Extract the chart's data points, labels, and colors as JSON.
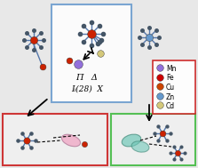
{
  "legend_entries": [
    "Mn",
    "Fe",
    "Cu",
    "Zn",
    "Cd"
  ],
  "legend_colors": [
    "#9370DB",
    "#CC0000",
    "#CC4400",
    "#6699CC",
    "#D4C87A"
  ],
  "legend_border": "#CC2222",
  "blue_box_color": "#6699CC",
  "green_box_color": "#44BB44",
  "red_box_color": "#CC2222",
  "text_line1": "Π   Δ",
  "text_line2": "Iᵢ(28)  X",
  "bg_color": "#E8E8E8",
  "title": ""
}
